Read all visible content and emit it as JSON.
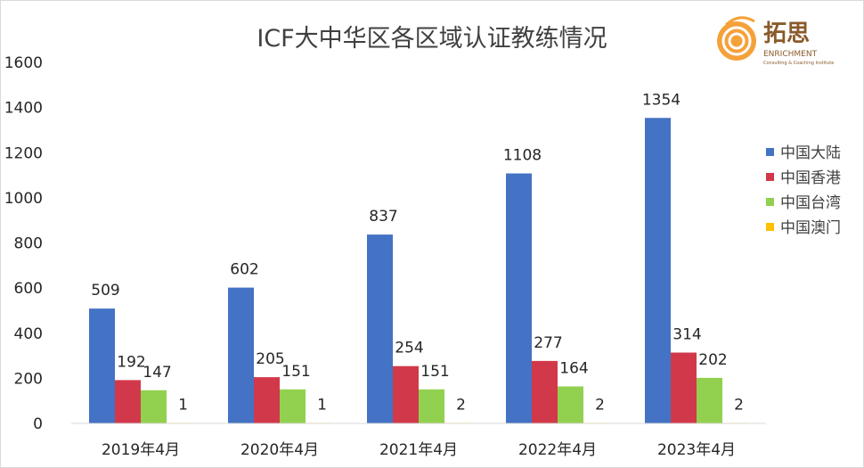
{
  "chart_data": {
    "type": "bar",
    "title": "ICF大中华区各区域认证教练情况",
    "categories": [
      "2019年4月",
      "2020年4月",
      "2021年4月",
      "2022年4月",
      "2023年4月"
    ],
    "series": [
      {
        "name": "中国大陆",
        "color": "#4472C4",
        "values": [
          509,
          602,
          837,
          1108,
          1354
        ]
      },
      {
        "name": "中国香港",
        "color": "#D1394A",
        "values": [
          192,
          205,
          254,
          277,
          314
        ]
      },
      {
        "name": "中国台湾",
        "color": "#92D050",
        "values": [
          147,
          151,
          151,
          164,
          202
        ]
      },
      {
        "name": "中国澳门",
        "color": "#FFC000",
        "values": [
          1,
          1,
          2,
          2,
          2
        ]
      }
    ],
    "ylim": [
      0,
      1600
    ],
    "yticks": [
      0,
      200,
      400,
      600,
      800,
      1000,
      1200,
      1400,
      1600
    ],
    "grid": false,
    "legend": "right"
  },
  "logo": {
    "name": "拓思",
    "sub": "ENRICHMENT",
    "tagline": "Consulting & Coaching Institute"
  }
}
